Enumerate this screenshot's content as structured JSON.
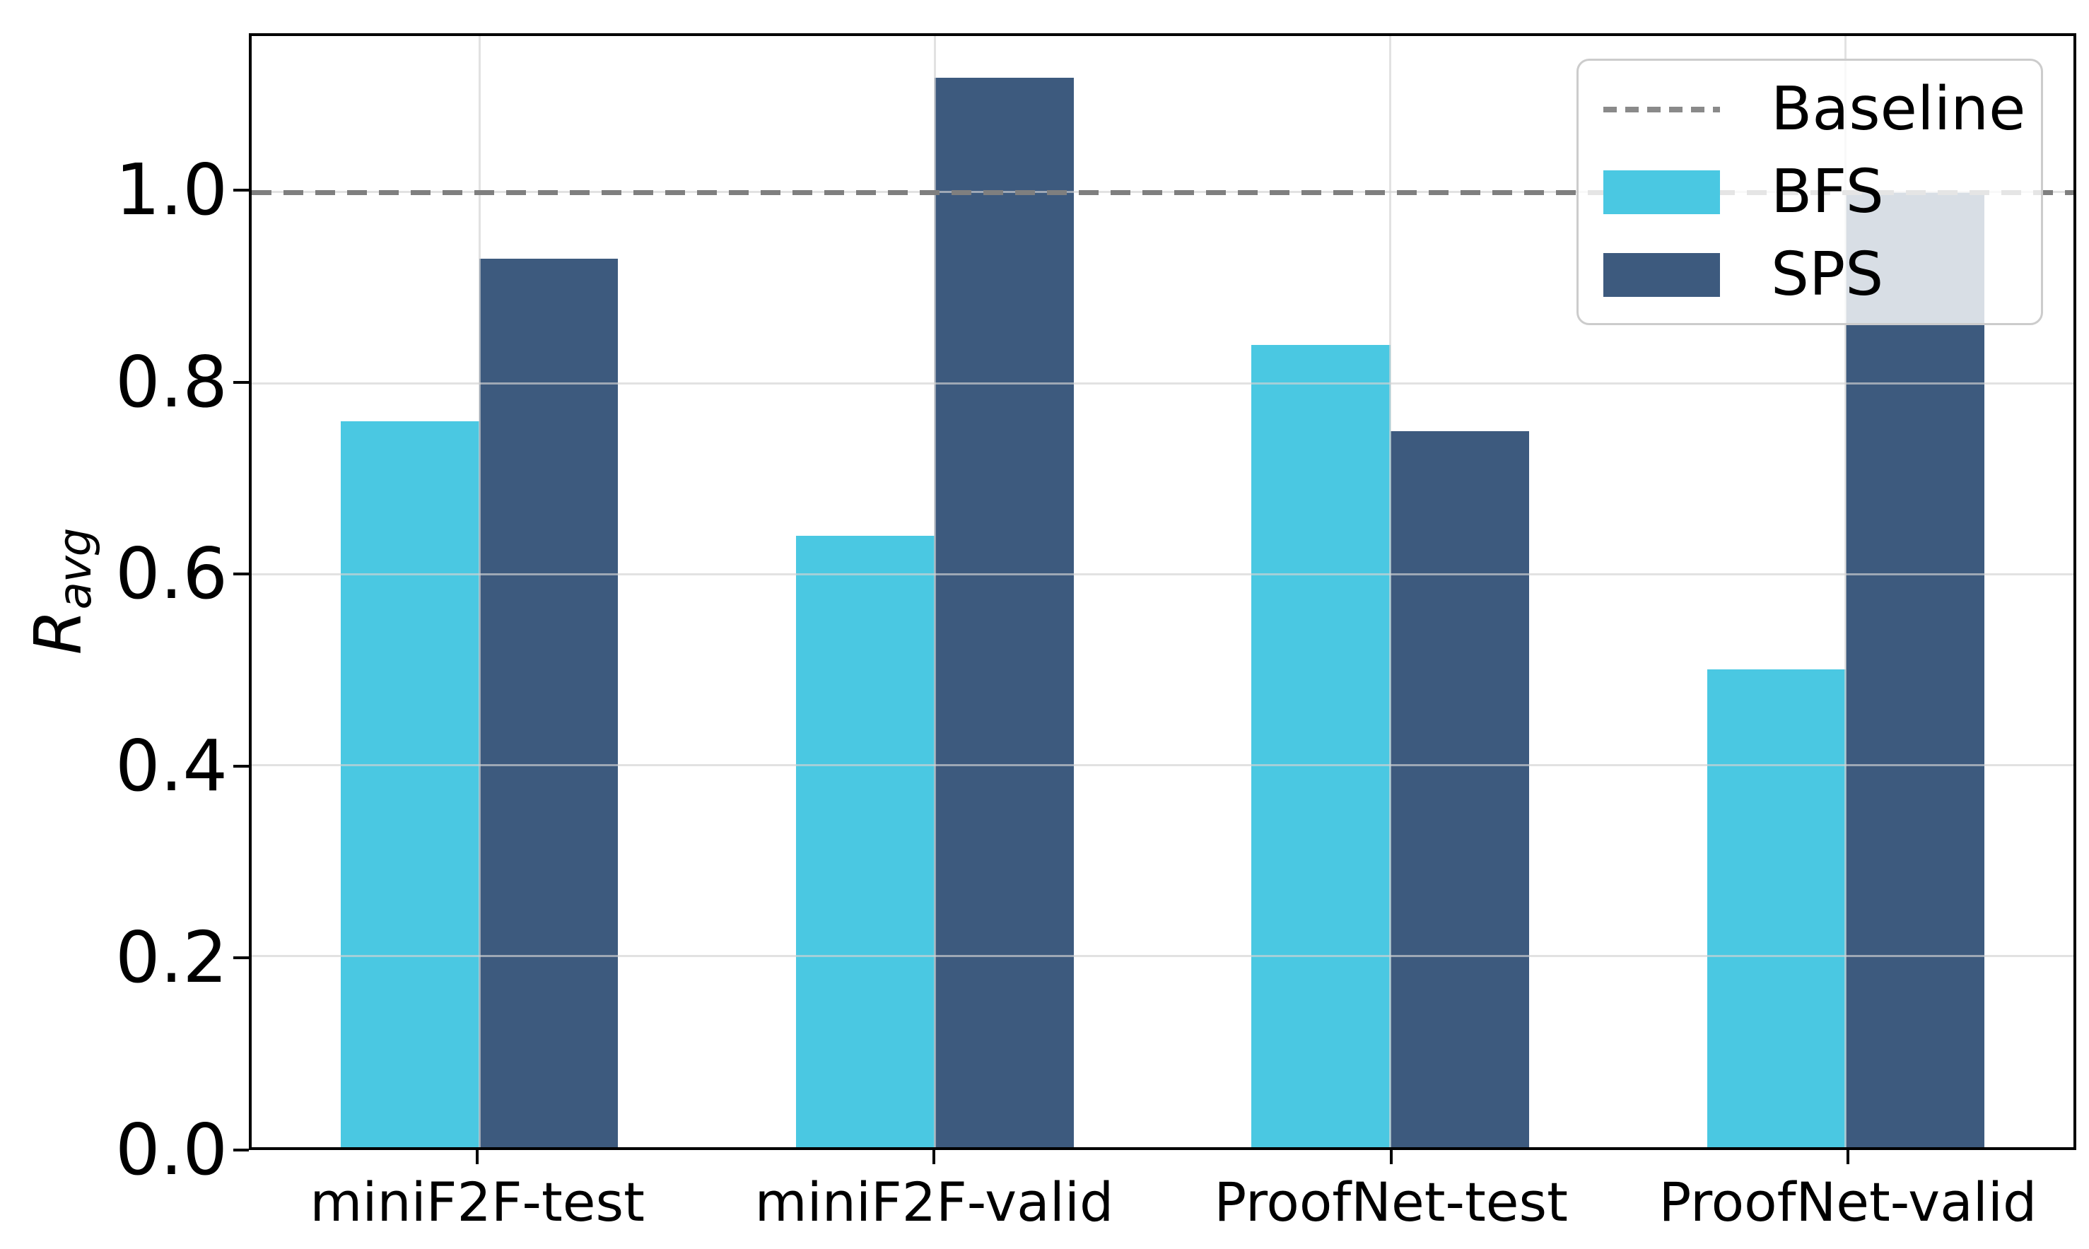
{
  "chart_data": {
    "type": "bar",
    "title": "",
    "categories": [
      "miniF2F-test",
      "miniF2F-valid",
      "ProofNet-test",
      "ProofNet-valid"
    ],
    "series": [
      {
        "name": "BFS",
        "color": "#4AC8E2",
        "values": [
          0.76,
          0.64,
          0.84,
          0.5
        ]
      },
      {
        "name": "SPS",
        "color": "#3D5A7E",
        "values": [
          0.93,
          1.12,
          0.75,
          1.0
        ]
      }
    ],
    "baseline": {
      "label": "Baseline",
      "value": 1.0,
      "color": "#7f7f7f",
      "line_style": "dashed"
    },
    "ylabel_main": "R",
    "ylabel_sub": "avg",
    "xlabel": "",
    "yticks": [
      0.0,
      0.2,
      0.4,
      0.6,
      0.8,
      1.0
    ],
    "ytick_labels": [
      "0.0",
      "0.2",
      "0.4",
      "0.6",
      "0.8",
      "1.0"
    ],
    "ylim": [
      0,
      1.1635
    ],
    "grid": true,
    "legend": {
      "position": "upper-right",
      "entries": [
        "Baseline",
        "BFS",
        "SPS"
      ]
    }
  },
  "style": {
    "background": "#ffffff",
    "grid_color": "rgba(210,210,210,0.65)",
    "spine_color": "#000000",
    "baseline_color": "#7f7f7f",
    "legend_border_color": "#cccccc",
    "legend_background": "rgba(255,255,255,0.8)",
    "bfs_color": "#4AC8E2",
    "sps_color": "#3D5A7E"
  }
}
